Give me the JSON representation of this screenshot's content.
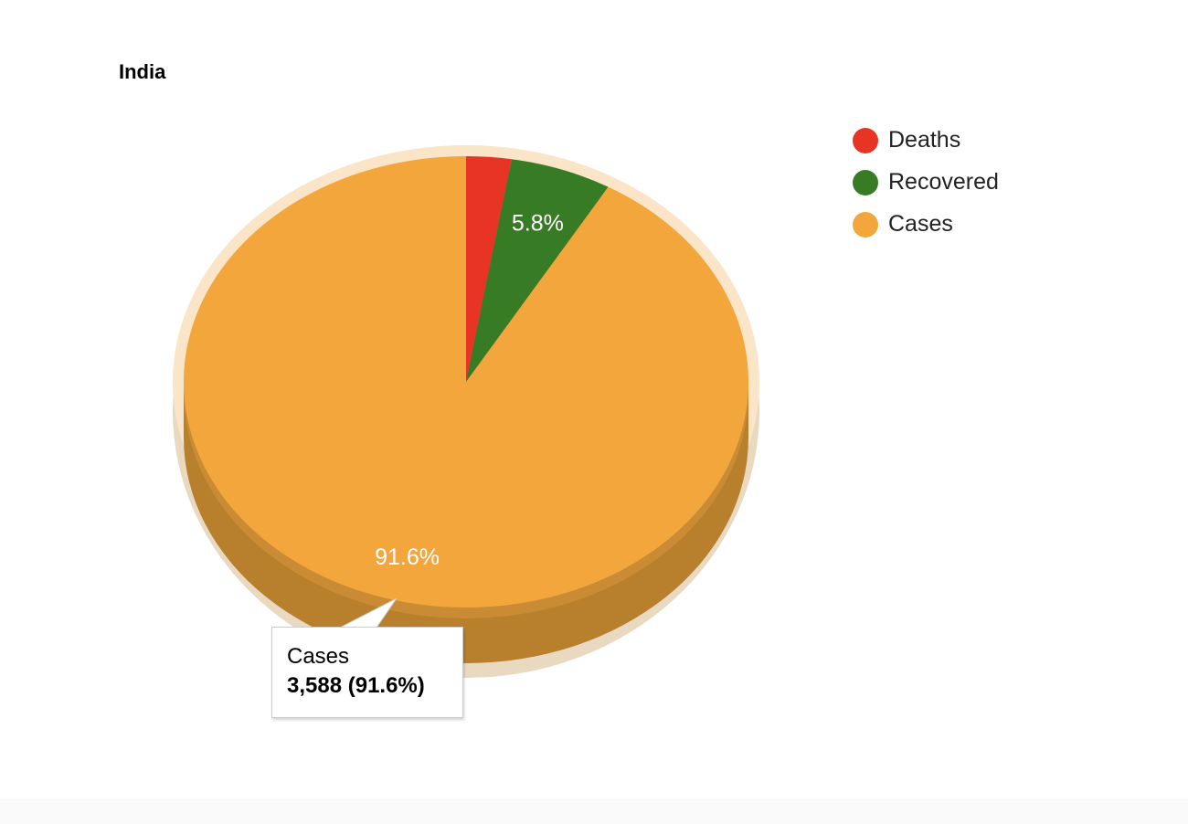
{
  "chart_data": {
    "type": "pie",
    "title": "India",
    "three_d": true,
    "categories": [
      "Deaths",
      "Recovered",
      "Cases"
    ],
    "values": [
      101,
      228,
      3588
    ],
    "slice_labels": [
      "",
      "5.8%",
      "91.6%"
    ],
    "colors": [
      "#e83425",
      "#377b24",
      "#f3a63c"
    ],
    "legend_position": "right",
    "tooltip": {
      "name": "Cases",
      "value": "3,588 (91.6%)"
    }
  }
}
